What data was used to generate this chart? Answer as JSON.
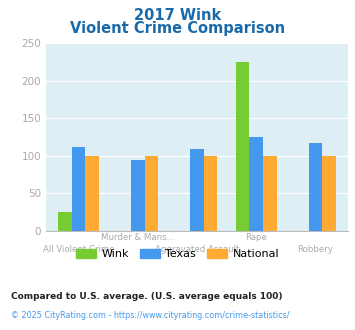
{
  "title_line1": "2017 Wink",
  "title_line2": "Violent Crime Comparison",
  "cat_labels_row1": [
    "",
    "Murder & Mans...",
    "",
    "Rape",
    ""
  ],
  "cat_labels_row2": [
    "All Violent Crime",
    "",
    "Aggravated Assault",
    "",
    "Robbery"
  ],
  "wink": [
    25,
    0,
    0,
    225,
    0
  ],
  "texas": [
    112,
    94,
    109,
    125,
    117
  ],
  "national": [
    100,
    100,
    100,
    100,
    100
  ],
  "wink_color": "#77cc33",
  "texas_color": "#4499ee",
  "national_color": "#ffaa33",
  "bg_color": "#ddeef5",
  "title_color": "#1a6aaa",
  "tick_color": "#aaaaaa",
  "ylim": [
    0,
    250
  ],
  "yticks": [
    0,
    50,
    100,
    150,
    200,
    250
  ],
  "footnote1": "Compared to U.S. average. (U.S. average equals 100)",
  "footnote2": "© 2025 CityRating.com - https://www.cityrating.com/crime-statistics/",
  "footnote1_color": "#222222",
  "footnote2_color": "#4499ee",
  "legend_labels": [
    "Wink",
    "Texas",
    "National"
  ]
}
